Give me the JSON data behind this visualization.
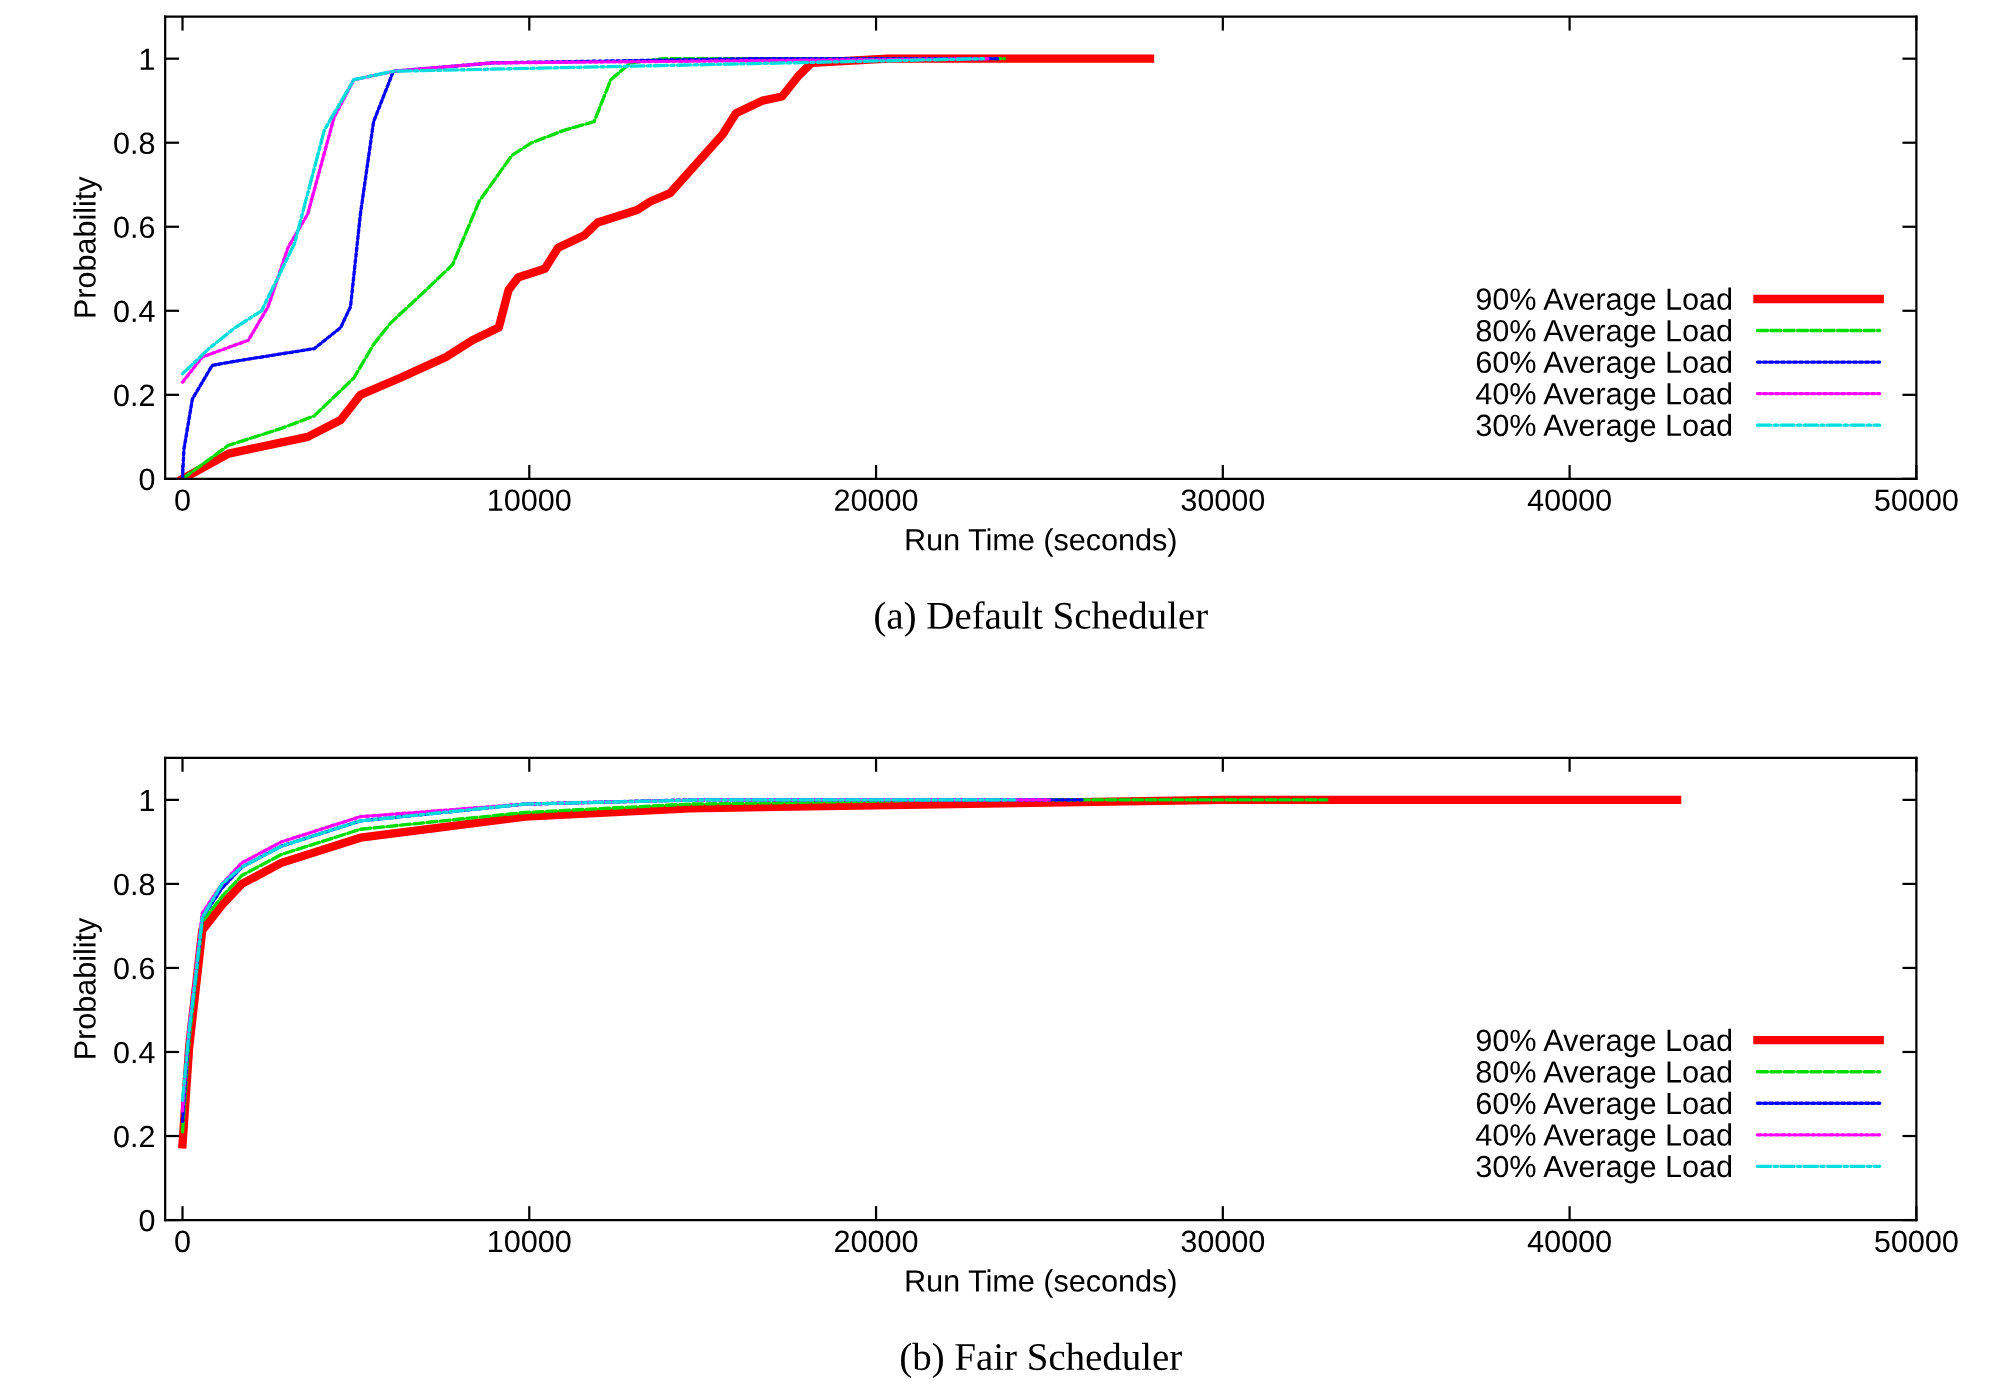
{
  "chart_data": [
    {
      "type": "line",
      "title": "(a) Default Scheduler",
      "xlabel": "Run Time (seconds)",
      "ylabel": "Probability",
      "xlim": [
        -500,
        50000
      ],
      "ylim": [
        0,
        1.1
      ],
      "xticks": [
        0,
        10000,
        20000,
        30000,
        40000,
        50000
      ],
      "yticks": [
        0,
        0.2,
        0.4,
        0.6,
        0.8,
        1
      ],
      "legend": "bottom right",
      "grid": false,
      "series": [
        {
          "name": "90% Average Load",
          "color": "#ff0000",
          "line_style": "solid",
          "x": [
            0,
            1330,
            3610,
            4560,
            5130,
            6270,
            7600,
            8360,
            9120,
            9405,
            9690,
            10450,
            10830,
            11590,
            11970,
            13110,
            13490,
            14060,
            14820,
            15580,
            15960,
            16720,
            17290,
            17770,
            18140,
            20330,
            27900
          ],
          "values": [
            0,
            0.06,
            0.1,
            0.14,
            0.2,
            0.24,
            0.29,
            0.33,
            0.36,
            0.45,
            0.48,
            0.5,
            0.55,
            0.58,
            0.61,
            0.64,
            0.66,
            0.68,
            0.75,
            0.82,
            0.87,
            0.9,
            0.91,
            0.96,
            0.99,
            1,
            1
          ]
        },
        {
          "name": "80% Average Load",
          "color": "#00dd00",
          "line_style": "dashed",
          "x": [
            0,
            1330,
            2850,
            3800,
            4940,
            5510,
            5990,
            7030,
            7790,
            8550,
            9500,
            10070,
            11020,
            11870,
            12350,
            12920,
            13870,
            23700
          ],
          "values": [
            0,
            0.08,
            0.12,
            0.15,
            0.24,
            0.32,
            0.37,
            0.45,
            0.51,
            0.66,
            0.77,
            0.8,
            0.83,
            0.85,
            0.95,
            0.99,
            1,
            1
          ]
        },
        {
          "name": "60% Average Load",
          "color": "#0000ff",
          "line_style": "dotted",
          "x": [
            0,
            40,
            285,
            855,
            1520,
            3800,
            4560,
            4845,
            5130,
            5510,
            6080,
            8930,
            16530,
            23500
          ],
          "values": [
            0,
            0.07,
            0.19,
            0.27,
            0.28,
            0.31,
            0.36,
            0.41,
            0.63,
            0.85,
            0.97,
            0.99,
            1,
            1
          ]
        },
        {
          "name": "40% Average Load",
          "color": "#ff00ff",
          "line_style": "dotted",
          "x": [
            0,
            570,
            1900,
            2470,
            3040,
            3610,
            4370,
            4940,
            6080,
            8930,
            23300
          ],
          "values": [
            0.23,
            0.29,
            0.33,
            0.41,
            0.55,
            0.63,
            0.86,
            0.95,
            0.97,
            0.99,
            1
          ]
        },
        {
          "name": "30% Average Load",
          "color": "#00dddd",
          "line_style": "dashdot",
          "x": [
            0,
            760,
            1520,
            2280,
            3230,
            4090,
            4940,
            6080,
            23100
          ],
          "values": [
            0.25,
            0.31,
            0.36,
            0.4,
            0.56,
            0.83,
            0.95,
            0.97,
            1
          ]
        }
      ]
    },
    {
      "type": "line",
      "title": "(b) Fair Scheduler",
      "xlabel": "Run Time (seconds)",
      "ylabel": "Probability",
      "xlim": [
        -500,
        50000
      ],
      "ylim": [
        0,
        1.1
      ],
      "xticks": [
        0,
        10000,
        20000,
        30000,
        40000,
        50000
      ],
      "yticks": [
        0,
        0.2,
        0.4,
        0.6,
        0.8,
        1
      ],
      "legend": "bottom right",
      "grid": false,
      "series": [
        {
          "name": "90% Average Load",
          "color": "#ff0000",
          "line_style": "solid",
          "x": [
            0,
            190,
            380,
            570,
            1140,
            1710,
            2850,
            5130,
            9880,
            14630,
            22230,
            30000,
            43100
          ],
          "values": [
            0.18,
            0.41,
            0.55,
            0.69,
            0.75,
            0.8,
            0.85,
            0.91,
            0.96,
            0.98,
            0.99,
            1,
            1
          ]
        },
        {
          "name": "80% Average Load",
          "color": "#00dd00",
          "line_style": "dashed",
          "x": [
            0,
            190,
            380,
            570,
            1140,
            1710,
            2850,
            5130,
            9880,
            14630,
            22230,
            33000
          ],
          "values": [
            0.21,
            0.43,
            0.57,
            0.71,
            0.77,
            0.82,
            0.87,
            0.93,
            0.97,
            0.99,
            1,
            1
          ]
        },
        {
          "name": "60% Average Load",
          "color": "#0000ff",
          "line_style": "dotted",
          "x": [
            0,
            190,
            380,
            570,
            1140,
            1710,
            2850,
            5130,
            9880,
            14630,
            26000
          ],
          "values": [
            0.235,
            0.45,
            0.58,
            0.72,
            0.79,
            0.84,
            0.89,
            0.95,
            0.99,
            1,
            1
          ]
        },
        {
          "name": "40% Average Load",
          "color": "#ff00ff",
          "line_style": "dotted",
          "x": [
            0,
            190,
            380,
            570,
            1140,
            1710,
            2850,
            5130,
            9880,
            15000,
            25000
          ],
          "values": [
            0.26,
            0.46,
            0.59,
            0.73,
            0.8,
            0.85,
            0.9,
            0.96,
            0.99,
            1,
            1
          ]
        },
        {
          "name": "30% Average Load",
          "color": "#00dddd",
          "line_style": "dashdot",
          "x": [
            0,
            190,
            380,
            570,
            1140,
            1710,
            2850,
            5130,
            9880,
            15000,
            24000
          ],
          "values": [
            0.285,
            0.45,
            0.58,
            0.72,
            0.8,
            0.84,
            0.89,
            0.95,
            0.99,
            1,
            1
          ]
        }
      ]
    }
  ]
}
